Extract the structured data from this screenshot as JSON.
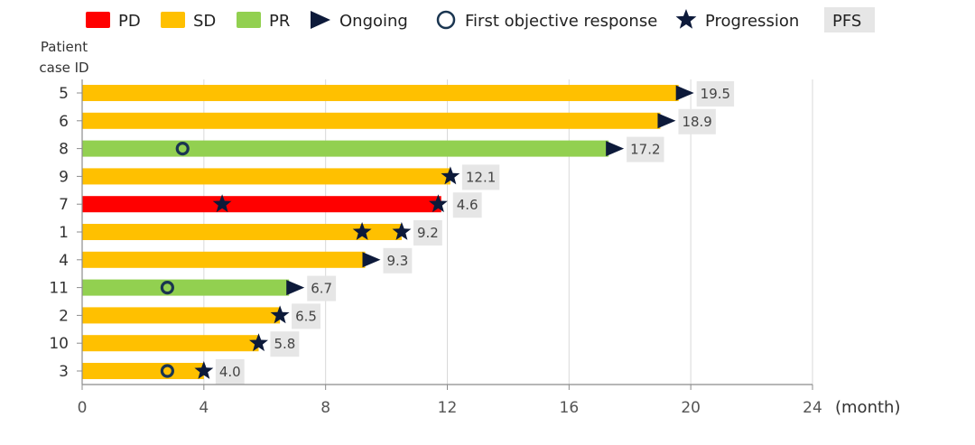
{
  "chart_data": {
    "type": "bar",
    "orientation": "horizontal",
    "title": "",
    "ylabel": "Patient case ID",
    "xlabel": "(month)",
    "xlim": [
      0,
      24
    ],
    "xticks": [
      0,
      4,
      8,
      12,
      16,
      20,
      24
    ],
    "grid": "vertical",
    "legend": {
      "placement": "top",
      "items": [
        {
          "key": "PD",
          "label": "PD",
          "kind": "swatch",
          "color": "#ff0000"
        },
        {
          "key": "SD",
          "label": "SD",
          "kind": "swatch",
          "color": "#ffc000"
        },
        {
          "key": "PR",
          "label": "PR",
          "kind": "swatch",
          "color": "#92d050"
        },
        {
          "key": "ongoing",
          "label": "Ongoing",
          "kind": "triangle",
          "color": "#0d1a3a"
        },
        {
          "key": "response",
          "label": "First objective response",
          "kind": "circle",
          "color": "#1a3550"
        },
        {
          "key": "progression",
          "label": "Progression",
          "kind": "star",
          "color": "#0d1a3a"
        },
        {
          "key": "pfs",
          "label": "PFS",
          "kind": "box",
          "color": "#e6e6e6"
        }
      ]
    },
    "series": [
      {
        "id": "5",
        "response": "SD",
        "duration": 19.6,
        "end_marker": "ongoing",
        "response_at": null,
        "progression_at": [],
        "pfs_label": "19.5"
      },
      {
        "id": "6",
        "response": "SD",
        "duration": 19.0,
        "end_marker": "ongoing",
        "response_at": null,
        "progression_at": [],
        "pfs_label": "18.9"
      },
      {
        "id": "8",
        "response": "PR",
        "duration": 17.3,
        "end_marker": "ongoing",
        "response_at": 3.3,
        "progression_at": [],
        "pfs_label": "17.2"
      },
      {
        "id": "9",
        "response": "SD",
        "duration": 12.1,
        "end_marker": "progression",
        "response_at": null,
        "progression_at": [
          12.1
        ],
        "pfs_label": "12.1"
      },
      {
        "id": "7",
        "response": "PD",
        "duration": 11.8,
        "end_marker": "progression",
        "response_at": null,
        "progression_at": [
          4.6,
          11.7
        ],
        "pfs_label": "4.6"
      },
      {
        "id": "1",
        "response": "SD",
        "duration": 10.5,
        "end_marker": "progression",
        "response_at": null,
        "progression_at": [
          9.2,
          10.5
        ],
        "pfs_label": "9.2"
      },
      {
        "id": "4",
        "response": "SD",
        "duration": 9.3,
        "end_marker": "ongoing",
        "response_at": null,
        "progression_at": [],
        "pfs_label": "9.3"
      },
      {
        "id": "11",
        "response": "PR",
        "duration": 6.8,
        "end_marker": "ongoing",
        "response_at": 2.8,
        "progression_at": [],
        "pfs_label": "6.7"
      },
      {
        "id": "2",
        "response": "SD",
        "duration": 6.5,
        "end_marker": "progression",
        "response_at": null,
        "progression_at": [
          6.5
        ],
        "pfs_label": "6.5"
      },
      {
        "id": "10",
        "response": "SD",
        "duration": 5.8,
        "end_marker": "progression",
        "response_at": null,
        "progression_at": [
          5.8
        ],
        "pfs_label": "5.8"
      },
      {
        "id": "3",
        "response": "SD",
        "duration": 4.0,
        "end_marker": "progression",
        "response_at": 2.8,
        "progression_at": [
          4.0
        ],
        "pfs_label": "4.0"
      }
    ]
  },
  "axis": {
    "ylabel_line1": "Patient",
    "ylabel_line2": "case ID",
    "unit_label": "(month)"
  },
  "colors": {
    "PD": "#ff0000",
    "SD": "#ffc000",
    "PR": "#92d050",
    "marker": "#0d1a3a",
    "response_ring": "#1a3550",
    "pfs_box": "#e6e6e6",
    "grid": "#d9d9d9",
    "axis": "#8c8c8c"
  }
}
